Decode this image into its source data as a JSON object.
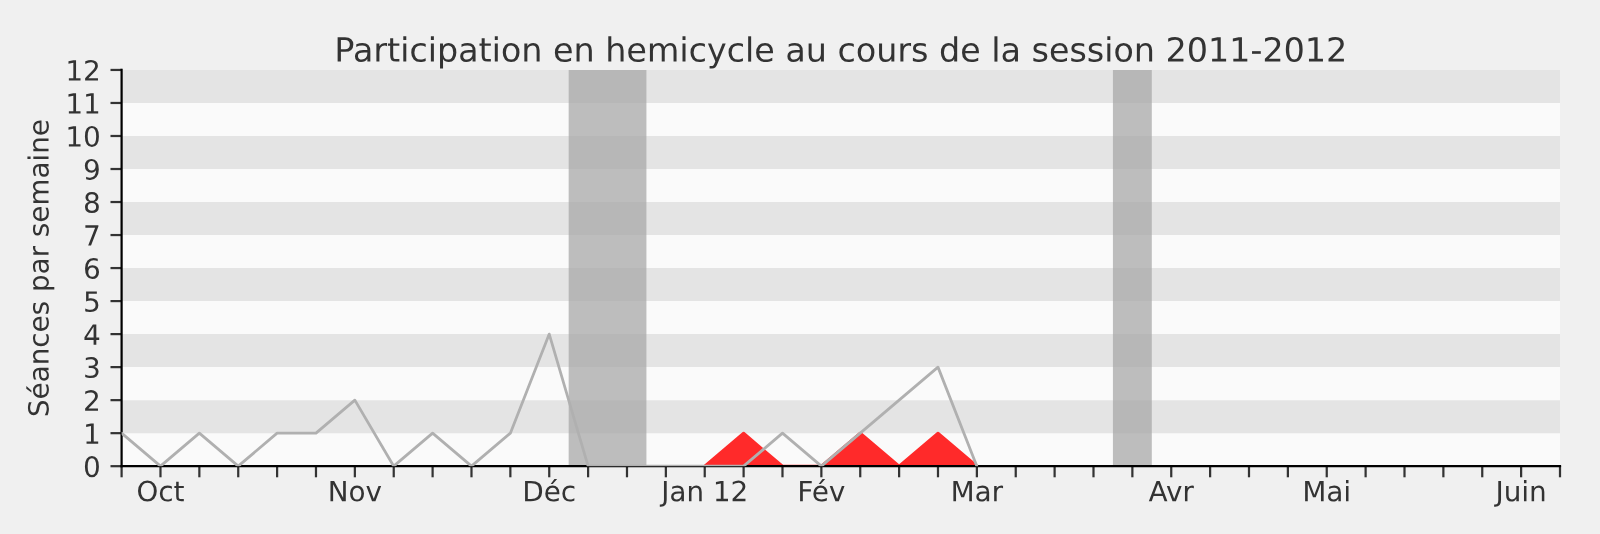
{
  "chart_data": {
    "type": "line",
    "title": "Participation en hemicycle au cours de la session 2011-2012",
    "ylabel": "Séances par semaine",
    "series": [
      {
        "color": "#b0b0b0",
        "x": [
          "2011-09-29",
          "2011-10-06",
          "2011-10-13",
          "2011-10-20",
          "2011-10-27",
          "2011-11-03",
          "2011-11-10",
          "2011-11-17",
          "2011-11-24",
          "2011-12-01",
          "2011-12-08",
          "2011-12-15",
          "2011-12-22",
          "2011-12-29",
          "2012-01-05",
          "2012-01-12",
          "2012-01-19",
          "2012-01-26",
          "2012-02-02",
          "2012-02-09",
          "2012-02-16",
          "2012-02-23",
          "2012-03-01"
        ],
        "values": [
          1,
          0,
          1,
          0,
          1,
          1,
          2,
          0,
          1,
          0,
          1,
          4,
          0,
          0,
          0,
          0,
          0,
          1,
          0,
          1,
          2,
          3,
          0
        ]
      },
      {
        "type": "area",
        "color": "#ff2a2a",
        "x": [
          "2012-01-12",
          "2012-01-19",
          "2012-01-26",
          "2012-02-02",
          "2012-02-09",
          "2012-02-16",
          "2012-02-23",
          "2012-03-01"
        ],
        "values": [
          0,
          1,
          0,
          0,
          1,
          0,
          1,
          0
        ]
      }
    ],
    "bands": [
      {
        "axis": "x",
        "from": "2011-12-18T12:00",
        "to": "2012-01-01T12:00",
        "color": "#a8a8a8"
      },
      {
        "axis": "x",
        "from": "2012-03-25T12:00",
        "to": "2012-04-01T12:00",
        "color": "#a8a8a8"
      }
    ],
    "xlim": [
      "2011-09-29",
      "2012-06-14"
    ],
    "xticks": [
      {
        "value": "2011-09-29",
        "label": null
      },
      {
        "value": "2011-10-06",
        "label": "Oct"
      },
      {
        "value": "2011-10-13",
        "label": null
      },
      {
        "value": "2011-10-20",
        "label": null
      },
      {
        "value": "2011-10-27",
        "label": null
      },
      {
        "value": "2011-11-03",
        "label": null
      },
      {
        "value": "2011-11-10",
        "label": "Nov"
      },
      {
        "value": "2011-11-17",
        "label": null
      },
      {
        "value": "2011-11-24",
        "label": null
      },
      {
        "value": "2011-12-01",
        "label": null
      },
      {
        "value": "2011-12-08",
        "label": null
      },
      {
        "value": "2011-12-15",
        "label": "Déc"
      },
      {
        "value": "2011-12-22",
        "label": null
      },
      {
        "value": "2011-12-29",
        "label": null
      },
      {
        "value": "2012-01-05",
        "label": null
      },
      {
        "value": "2012-01-12",
        "label": "Jan 12"
      },
      {
        "value": "2012-01-19",
        "label": null
      },
      {
        "value": "2012-01-26",
        "label": null
      },
      {
        "value": "2012-02-02",
        "label": "Fév"
      },
      {
        "value": "2012-02-09",
        "label": null
      },
      {
        "value": "2012-02-16",
        "label": null
      },
      {
        "value": "2012-02-23",
        "label": null
      },
      {
        "value": "2012-03-01",
        "label": "Mar"
      },
      {
        "value": "2012-03-08",
        "label": null
      },
      {
        "value": "2012-03-15",
        "label": null
      },
      {
        "value": "2012-03-22",
        "label": null
      },
      {
        "value": "2012-03-29",
        "label": null
      },
      {
        "value": "2012-04-05",
        "label": "Avr"
      },
      {
        "value": "2012-04-12",
        "label": null
      },
      {
        "value": "2012-04-19",
        "label": null
      },
      {
        "value": "2012-04-26",
        "label": null
      },
      {
        "value": "2012-05-03",
        "label": "Mai"
      },
      {
        "value": "2012-05-10",
        "label": null
      },
      {
        "value": "2012-05-17",
        "label": null
      },
      {
        "value": "2012-05-24",
        "label": null
      },
      {
        "value": "2012-05-31",
        "label": null
      },
      {
        "value": "2012-06-07",
        "label": "Juin"
      },
      {
        "value": "2012-06-14",
        "label": null
      }
    ],
    "ylim": [
      0,
      12
    ],
    "yticks": [
      0,
      1,
      2,
      3,
      4,
      5,
      6,
      7,
      8,
      9,
      10,
      11,
      12
    ]
  }
}
